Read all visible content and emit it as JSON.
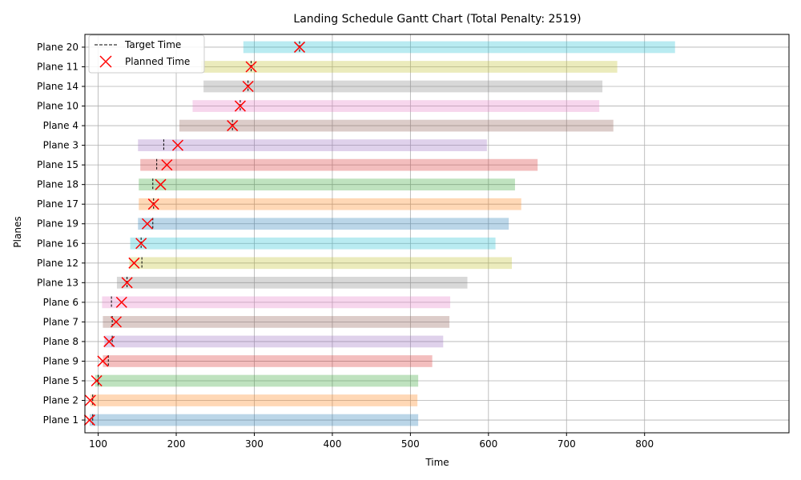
{
  "chart_data": {
    "type": "gantt",
    "title": "Landing Schedule Gantt Chart (Total Penalty: 2519)",
    "xlabel": "Time",
    "ylabel": "Planes",
    "xlim": [
      83,
      985
    ],
    "xticks": [
      100,
      200,
      300,
      400,
      500,
      600,
      700,
      800
    ],
    "grid": true,
    "legend": {
      "position": "top-left",
      "entries": [
        {
          "label": "Target Time",
          "marker": "dashed-line",
          "color": "#000000"
        },
        {
          "label": "Planned Time",
          "marker": "x",
          "color": "#ff0000"
        }
      ]
    },
    "planes": [
      {
        "name": "Plane 1",
        "earliest": 89,
        "latest": 510,
        "target": 93,
        "planned": 89,
        "color": "#1f77b4"
      },
      {
        "name": "Plane 2",
        "earliest": 90,
        "latest": 509,
        "target": 93,
        "planned": 90,
        "color": "#ff7f0e"
      },
      {
        "name": "Plane 5",
        "earliest": 96,
        "latest": 510,
        "target": 100,
        "planned": 98,
        "color": "#2ca02c"
      },
      {
        "name": "Plane 9",
        "earliest": 106,
        "latest": 528,
        "target": 113,
        "planned": 106,
        "color": "#d62728"
      },
      {
        "name": "Plane 8",
        "earliest": 108,
        "latest": 542,
        "target": 118,
        "planned": 114,
        "color": "#9467bd"
      },
      {
        "name": "Plane 7",
        "earliest": 106,
        "latest": 550,
        "target": 118,
        "planned": 123,
        "color": "#8c564b"
      },
      {
        "name": "Plane 6",
        "earliest": 105,
        "latest": 551,
        "target": 117,
        "planned": 130,
        "color": "#e377c2"
      },
      {
        "name": "Plane 13",
        "earliest": 124,
        "latest": 573,
        "target": 137,
        "planned": 137,
        "color": "#7f7f7f"
      },
      {
        "name": "Plane 12",
        "earliest": 140,
        "latest": 630,
        "target": 156,
        "planned": 146,
        "color": "#bcbd22"
      },
      {
        "name": "Plane 16",
        "earliest": 141,
        "latest": 609,
        "target": 155,
        "planned": 155,
        "color": "#17becf"
      },
      {
        "name": "Plane 19",
        "earliest": 151,
        "latest": 626,
        "target": 170,
        "planned": 163,
        "color": "#1f77b4"
      },
      {
        "name": "Plane 17",
        "earliest": 152,
        "latest": 642,
        "target": 171,
        "planned": 171,
        "color": "#ff7f0e"
      },
      {
        "name": "Plane 18",
        "earliest": 152,
        "latest": 634,
        "target": 170,
        "planned": 180,
        "color": "#2ca02c"
      },
      {
        "name": "Plane 15",
        "earliest": 154,
        "latest": 663,
        "target": 175,
        "planned": 188,
        "color": "#d62728"
      },
      {
        "name": "Plane 3",
        "earliest": 151,
        "latest": 598,
        "target": 184,
        "planned": 202,
        "color": "#9467bd"
      },
      {
        "name": "Plane 4",
        "earliest": 204,
        "latest": 760,
        "target": 272,
        "planned": 272,
        "color": "#8c564b"
      },
      {
        "name": "Plane 10",
        "earliest": 221,
        "latest": 742,
        "target": 282,
        "planned": 282,
        "color": "#e377c2"
      },
      {
        "name": "Plane 14",
        "earliest": 235,
        "latest": 746,
        "target": 292,
        "planned": 292,
        "color": "#7f7f7f"
      },
      {
        "name": "Plane 11",
        "earliest": 232,
        "latest": 765,
        "target": 296,
        "planned": 296,
        "color": "#bcbd22"
      },
      {
        "name": "Plane 20",
        "earliest": 286,
        "latest": 839,
        "target": 358,
        "planned": 358,
        "color": "#17becf"
      }
    ]
  }
}
